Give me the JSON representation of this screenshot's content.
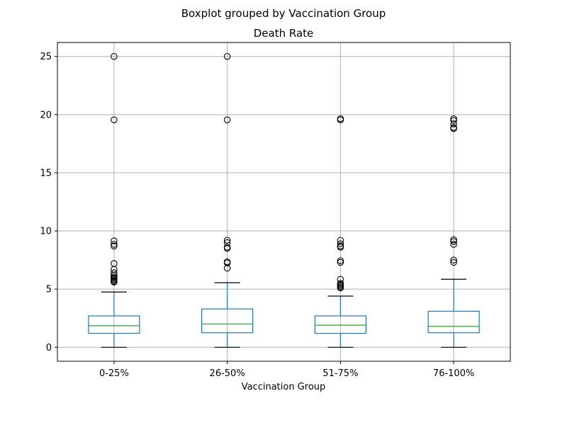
{
  "chart_data": {
    "type": "box",
    "suptitle": "Boxplot grouped by Vaccination Group",
    "title": "Death Rate",
    "xlabel": "Vaccination Group",
    "ylabel": "",
    "ylim": [
      -1.2,
      26.2
    ],
    "yticks": [
      0,
      5,
      10,
      15,
      20,
      25
    ],
    "grid": true,
    "categories": [
      "0-25%",
      "26-50%",
      "51-75%",
      "76-100%"
    ],
    "boxes": [
      {
        "whisker_low": 0,
        "q1": 1.2,
        "median": 1.85,
        "q3": 2.7,
        "whisker_high": 4.75,
        "outliers": [
          25.0,
          19.55,
          9.15,
          8.85,
          8.7,
          7.2,
          6.7,
          6.4,
          6.2,
          6.05,
          5.95,
          5.85,
          5.75,
          5.65,
          5.6
        ]
      },
      {
        "whisker_low": 0,
        "q1": 1.25,
        "median": 2.0,
        "q3": 3.3,
        "whisker_high": 5.55,
        "outliers": [
          25.0,
          19.55,
          9.2,
          9.0,
          8.6,
          8.5,
          7.35,
          7.25,
          6.8
        ]
      },
      {
        "whisker_low": 0,
        "q1": 1.2,
        "median": 1.9,
        "q3": 2.7,
        "whisker_high": 4.4,
        "outliers": [
          19.65,
          19.55,
          9.2,
          8.9,
          8.7,
          8.6,
          7.45,
          7.3,
          5.85,
          5.5,
          5.4,
          5.3,
          5.2,
          5.1
        ]
      },
      {
        "whisker_low": 0,
        "q1": 1.25,
        "median": 1.8,
        "q3": 3.1,
        "whisker_high": 5.85,
        "outliers": [
          19.65,
          19.5,
          19.2,
          18.9,
          18.8,
          9.25,
          9.1,
          8.85,
          7.5,
          7.3
        ]
      }
    ],
    "colors": {
      "box": "#1f77b4",
      "median": "#2ca02c",
      "whisker_cap": "#000000",
      "outlier": "#000000",
      "grid": "#b0b0b0",
      "frame": "#000000"
    }
  }
}
